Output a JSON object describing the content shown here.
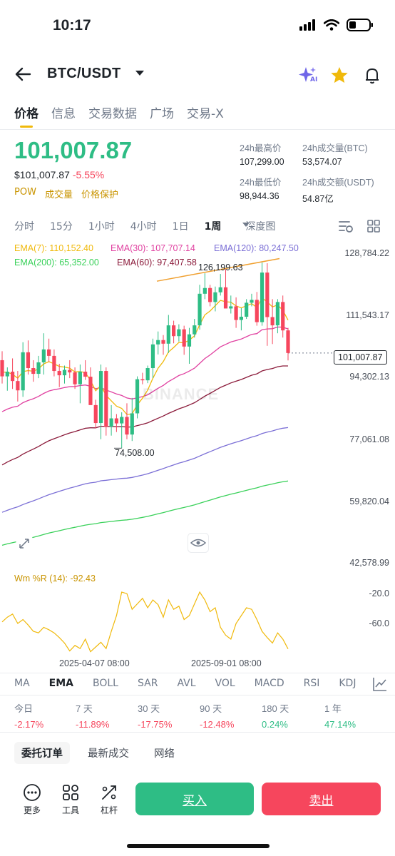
{
  "status_bar": {
    "time": "10:17"
  },
  "header": {
    "pair": "BTC/USDT",
    "icons": [
      "back-arrow-icon",
      "dropdown-caret-icon",
      "ai-sparkle-icon",
      "star-icon",
      "bell-icon"
    ],
    "ai_badge": "AI"
  },
  "tabs": [
    "价格",
    "信息",
    "交易数据",
    "广场",
    "交易-X"
  ],
  "price": {
    "last": "101,007.87",
    "usd": "$101,007.87",
    "change": "-5.55%",
    "tags": [
      "POW",
      "成交量",
      "价格保护"
    ]
  },
  "stats": {
    "high_label": "24h最高价",
    "high": "107,299.00",
    "vol_btc_label": "24h成交量(BTC)",
    "vol_btc": "53,574.07",
    "low_label": "24h最低价",
    "low": "98,944.36",
    "vol_usdt_label": "24h成交额(USDT)",
    "vol_usdt": "54.87亿"
  },
  "intervals": [
    "分时",
    "15分",
    "1小时",
    "4小时",
    "1日",
    "1周",
    "深度图"
  ],
  "active_interval": "1周",
  "ema_legend": {
    "ema7": "EMA(7): 110,152.40",
    "ema30": "EMA(30): 107,707.14",
    "ema120": "EMA(120): 80,247.50",
    "ema200": "EMA(200): 65,352.00",
    "ema60": "EMA(60): 97,407.58"
  },
  "chart": {
    "y_labels": [
      "128,784.22",
      "111,543.17",
      "94,302.13",
      "77,061.08",
      "59,820.04",
      "42,578.99"
    ],
    "current_price_tag": "101,007.87",
    "high_marker": "126,199.63",
    "low_marker": "74,508.00",
    "watermark": "BINANCE",
    "wr_label": "Wm %R (14): -92.43",
    "wr_levels": [
      "-20.0",
      "-60.0"
    ],
    "x_labels": [
      "2025-04-07 08:00",
      "2025-09-01 08:00"
    ],
    "colors": {
      "up": "#2ebd85",
      "down": "#f6465d",
      "ema7": "#f0b90b",
      "ema30": "#e040a0",
      "ema60": "#8b1a3a",
      "ema120": "#7b6fd6",
      "ema200": "#3ad15a",
      "wr": "#f0b90b"
    }
  },
  "chart_data": {
    "type": "candlestick",
    "interval": "1周",
    "ylim": [
      42578.99,
      128784.22
    ],
    "candles_ohlc": [
      [
        99000,
        101500,
        92500,
        94500
      ],
      [
        94500,
        97000,
        90500,
        95800
      ],
      [
        95800,
        99500,
        91000,
        93200
      ],
      [
        93200,
        96000,
        87500,
        90600
      ],
      [
        90600,
        104000,
        88800,
        101200
      ],
      [
        101200,
        104500,
        95000,
        96800
      ],
      [
        96800,
        99000,
        93000,
        95200
      ],
      [
        95200,
        100200,
        94000,
        98400
      ],
      [
        98400,
        106500,
        95000,
        102000
      ],
      [
        102000,
        105000,
        98500,
        100200
      ],
      [
        100200,
        102000,
        94500,
        96000
      ],
      [
        96000,
        98000,
        91500,
        94800
      ],
      [
        94800,
        97500,
        92500,
        96300
      ],
      [
        96300,
        99000,
        94000,
        95600
      ],
      [
        95600,
        97000,
        91000,
        92300
      ],
      [
        92300,
        97800,
        87000,
        95800
      ],
      [
        95800,
        99000,
        93500,
        94400
      ],
      [
        94400,
        97000,
        89000,
        86500
      ],
      [
        86500,
        88000,
        80000,
        81500
      ],
      [
        81500,
        97800,
        77000,
        96000
      ],
      [
        96000,
        97000,
        78000,
        80500
      ],
      [
        80500,
        86500,
        78000,
        82800
      ],
      [
        82800,
        84000,
        79000,
        81400
      ],
      [
        81400,
        84500,
        74508,
        83200
      ],
      [
        83200,
        87000,
        77000,
        78300
      ],
      [
        78300,
        88500,
        76500,
        84200
      ],
      [
        84200,
        94500,
        82800,
        93700
      ],
      [
        93700,
        95500,
        92300,
        93400
      ],
      [
        93400,
        97500,
        92600,
        96800
      ],
      [
        96800,
        105000,
        94000,
        103400
      ],
      [
        103400,
        107000,
        100600,
        104600
      ],
      [
        104600,
        106000,
        100500,
        103600
      ],
      [
        103600,
        111600,
        101000,
        108700
      ],
      [
        108700,
        110000,
        103700,
        105700
      ],
      [
        105700,
        109000,
        104200,
        107600
      ],
      [
        107600,
        108600,
        100500,
        102800
      ],
      [
        102800,
        108000,
        98000,
        106200
      ],
      [
        106200,
        110500,
        105300,
        108700
      ],
      [
        108700,
        120000,
        107500,
        117500
      ],
      [
        117500,
        123200,
        116000,
        119100
      ],
      [
        119100,
        120000,
        114000,
        115200
      ],
      [
        115200,
        119500,
        112600,
        117900
      ],
      [
        117900,
        123000,
        117000,
        119300
      ],
      [
        119300,
        124500,
        116000,
        113400
      ],
      [
        113400,
        117000,
        112000,
        114000
      ],
      [
        114000,
        116500,
        108000,
        110200
      ],
      [
        110200,
        113500,
        107300,
        111100
      ],
      [
        111100,
        116000,
        110500,
        115000
      ],
      [
        115000,
        117500,
        114000,
        115800
      ],
      [
        115800,
        118000,
        108600,
        109600
      ],
      [
        109600,
        126199.63,
        108600,
        123400
      ],
      [
        123400,
        126000,
        103000,
        111000
      ],
      [
        111000,
        116000,
        103500,
        108700
      ],
      [
        108700,
        116000,
        106500,
        115200
      ],
      [
        115200,
        117000,
        105300,
        107300
      ],
      [
        107300,
        108000,
        98944.36,
        101007.87
      ]
    ],
    "current_price": 101007.87,
    "high": 126199.63,
    "low": 74508.0,
    "ema_latest": {
      "EMA(7)": 110152.4,
      "EMA(30)": 107707.14,
      "EMA(60)": 97407.58,
      "EMA(120)": 80247.5,
      "EMA(200)": 65352.0
    },
    "williams_r": {
      "label": "Wm %R (14)",
      "latest": -92.43,
      "levels": [
        -20.0,
        -60.0
      ],
      "range": [
        -100,
        0
      ],
      "values": [
        -58,
        -52,
        -48,
        -60,
        -55,
        -62,
        -70,
        -72,
        -65,
        -68,
        -72,
        -78,
        -85,
        -95,
        -88,
        -92,
        -80,
        -96,
        -90,
        -84,
        -92,
        -70,
        -50,
        -20,
        -22,
        -42,
        -35,
        -28,
        -40,
        -30,
        -36,
        -52,
        -30,
        -42,
        -38,
        -55,
        -50,
        -35,
        -20,
        -30,
        -45,
        -40,
        -65,
        -75,
        -80,
        -60,
        -50,
        -40,
        -42,
        -55,
        -70,
        -78,
        -85,
        -72,
        -80,
        -92.43
      ]
    },
    "x_tick_labels": [
      "2025-04-07 08:00",
      "2025-09-01 08:00"
    ]
  },
  "indicators": [
    "MA",
    "EMA",
    "BOLL",
    "SAR",
    "AVL",
    "VOL",
    "MACD",
    "RSI",
    "KDJ"
  ],
  "active_indicator": "EMA",
  "performance": [
    {
      "label": "今日",
      "value": "-2.17%",
      "dir": "neg"
    },
    {
      "label": "7 天",
      "value": "-11.89%",
      "dir": "neg"
    },
    {
      "label": "30 天",
      "value": "-17.75%",
      "dir": "neg"
    },
    {
      "label": "90 天",
      "value": "-12.48%",
      "dir": "neg"
    },
    {
      "label": "180 天",
      "value": "0.24%",
      "dir": "pos"
    },
    {
      "label": "1 年",
      "value": "47.14%",
      "dir": "pos"
    }
  ],
  "order_tabs": [
    "委托订单",
    "最新成交",
    "网络"
  ],
  "toolbar": {
    "more": "更多",
    "tools": "工具",
    "leverage": "杠杆",
    "buy": "买入",
    "sell": "卖出"
  }
}
